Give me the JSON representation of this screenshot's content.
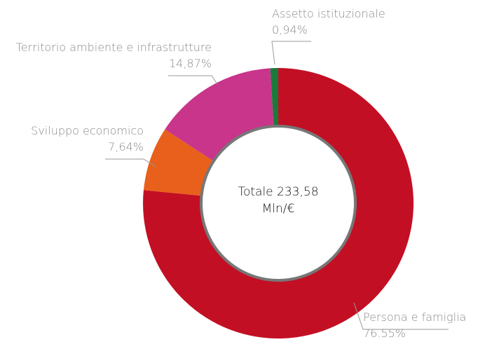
{
  "chart_data": {
    "type": "pie",
    "categories": [
      "Persona e famiglia",
      "Sviluppo economico",
      "Territorio ambiente e infrastrutture",
      "Assetto istituzionale"
    ],
    "values": [
      76.55,
      7.64,
      14.87,
      0.94
    ],
    "value_labels": [
      "76.55%",
      "7,64%",
      "14,87%",
      "0,94%"
    ],
    "colors": [
      "#c30f24",
      "#e8601c",
      "#c8358a",
      "#1a7a3a"
    ],
    "center_text": [
      "Totale 233,58",
      "Mln/€"
    ]
  }
}
